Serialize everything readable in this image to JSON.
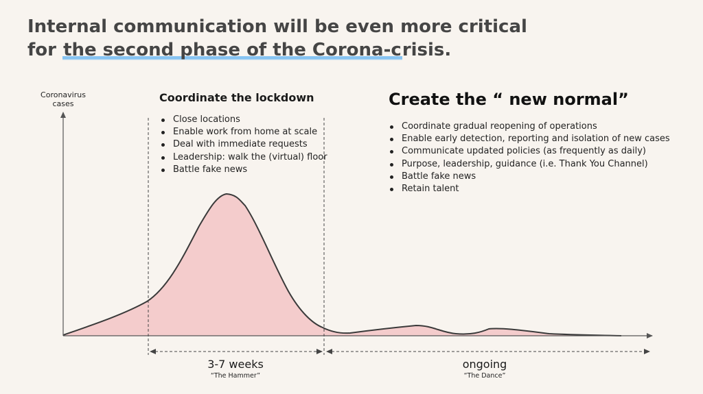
{
  "title": {
    "line1": "Internal communication will be even more critical",
    "line2_prefix": "for ",
    "line2_highlight": "the second phase of the Corona-c",
    "line2_suffix": "risis."
  },
  "axis": {
    "ylabel_line1": "Coronavirus",
    "ylabel_line2": "cases"
  },
  "phase1": {
    "title": "Coordinate the lockdown",
    "bullets": [
      "Close locations",
      "Enable work from home at scale",
      "Deal with immediate requests",
      "Leadership: walk the (virtual) floor",
      "Battle fake news"
    ],
    "duration": "3-7 weeks",
    "nickname": "“The Hammer”"
  },
  "phase2": {
    "title": "Create the “ new normal”",
    "bullets": [
      "Coordinate gradual reopening of operations",
      "Enable early detection, reporting and isolation of new cases",
      "Communicate updated policies (as frequently as daily)",
      "Purpose, leadership, guidance (i.e. Thank You Channel)",
      "Battle fake news",
      "Retain talent"
    ],
    "duration": "ongoing",
    "nickname": "“The Dance”"
  },
  "colors": {
    "curve_fill": "#f4cccc",
    "curve_stroke": "#3a3a3a",
    "highlight": "#86c3f2",
    "background": "#f8f4ef"
  }
}
